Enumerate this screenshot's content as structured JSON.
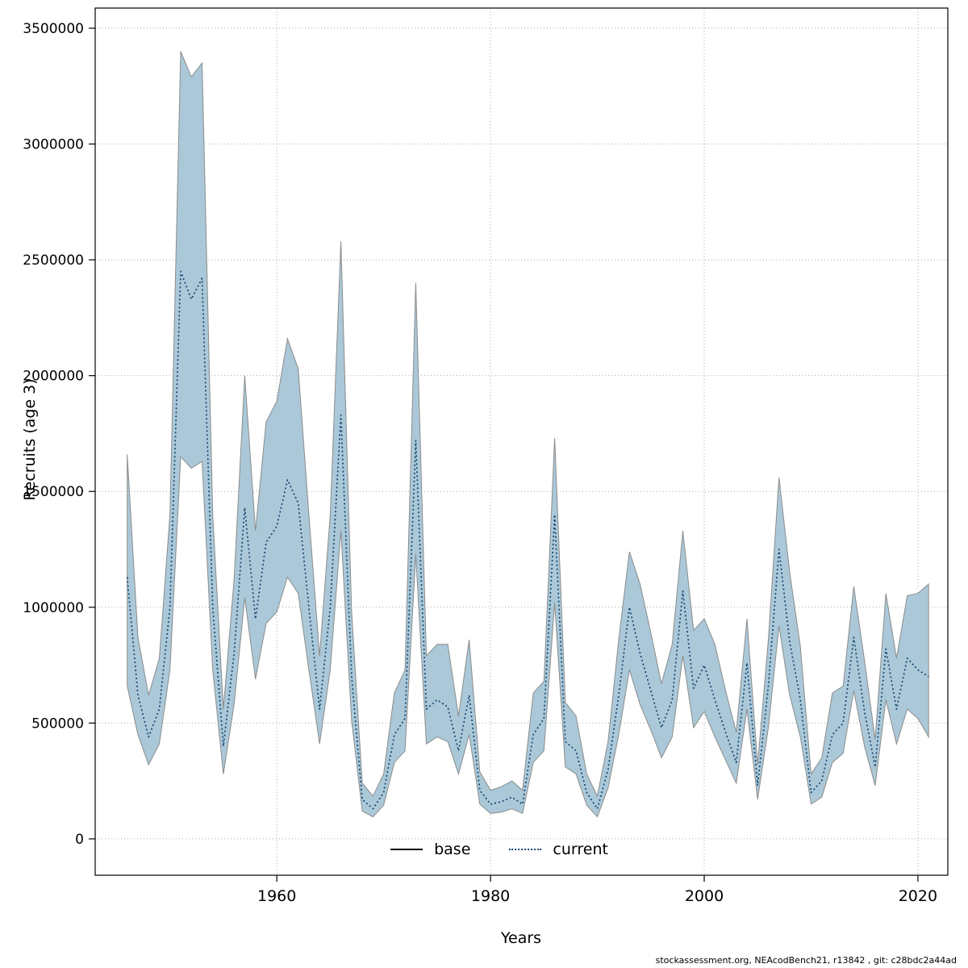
{
  "page": {
    "footer": "stockassessment.org, NEAcodBench21, r13842 , git: c28bdc2a44ad"
  },
  "chart_data": {
    "type": "line",
    "title": "",
    "xlabel": "Years",
    "ylabel": "Recruits (age 3)",
    "x_ticks": [
      1960,
      1980,
      2000,
      2020
    ],
    "y_ticks": [
      0,
      500000,
      1000000,
      1500000,
      2000000,
      2500000,
      3000000,
      3500000
    ],
    "xlim": [
      1943.0,
      2022.8
    ],
    "ylim": [
      -157000,
      3587000
    ],
    "grid": "dotted",
    "grid_color": "#aaaaaa",
    "band_color": "#aac8d8",
    "band_edge_color": "#8c8c8c",
    "line_color": "#17456e",
    "legend": [
      {
        "label": "base",
        "style": "solid",
        "color": "#000000"
      },
      {
        "label": "current",
        "style": "dotted",
        "color": "#17456e"
      }
    ],
    "years": [
      1946,
      1947,
      1948,
      1949,
      1950,
      1951,
      1952,
      1953,
      1954,
      1955,
      1956,
      1957,
      1958,
      1959,
      1960,
      1961,
      1962,
      1963,
      1964,
      1965,
      1966,
      1967,
      1968,
      1969,
      1970,
      1971,
      1972,
      1973,
      1974,
      1975,
      1976,
      1977,
      1978,
      1979,
      1980,
      1981,
      1982,
      1983,
      1984,
      1985,
      1986,
      1987,
      1988,
      1989,
      1990,
      1991,
      1992,
      1993,
      1994,
      1995,
      1996,
      1997,
      1998,
      1999,
      2000,
      2001,
      2002,
      2003,
      2004,
      2005,
      2006,
      2007,
      2008,
      2009,
      2010,
      2011,
      2012,
      2013,
      2014,
      2015,
      2016,
      2017,
      2018,
      2019,
      2020,
      2021
    ],
    "series": [
      {
        "name": "current",
        "style": "dotted",
        "values": [
          1130000,
          620000,
          440000,
          560000,
          1000000,
          2450000,
          2330000,
          2420000,
          1000000,
          400000,
          800000,
          1430000,
          950000,
          1280000,
          1350000,
          1550000,
          1450000,
          1000000,
          560000,
          1000000,
          1830000,
          700000,
          170000,
          130000,
          200000,
          450000,
          520000,
          1720000,
          560000,
          600000,
          570000,
          380000,
          620000,
          210000,
          150000,
          160000,
          180000,
          150000,
          450000,
          520000,
          1400000,
          420000,
          380000,
          200000,
          130000,
          300000,
          620000,
          1000000,
          800000,
          640000,
          480000,
          600000,
          1070000,
          650000,
          750000,
          600000,
          460000,
          330000,
          760000,
          230000,
          660000,
          1250000,
          850000,
          600000,
          200000,
          250000,
          450000,
          500000,
          870000,
          550000,
          310000,
          820000,
          560000,
          780000,
          730000,
          700000
        ]
      }
    ],
    "band": {
      "name": "confidence-band",
      "lo": [
        660000,
        450000,
        320000,
        410000,
        730000,
        1650000,
        1600000,
        1630000,
        730000,
        280000,
        580000,
        1040000,
        690000,
        930000,
        980000,
        1130000,
        1060000,
        730000,
        410000,
        730000,
        1330000,
        510000,
        120000,
        95000,
        145000,
        330000,
        380000,
        1230000,
        410000,
        440000,
        420000,
        280000,
        450000,
        150000,
        110000,
        115000,
        130000,
        110000,
        330000,
        380000,
        1020000,
        310000,
        280000,
        145000,
        95000,
        220000,
        450000,
        730000,
        580000,
        470000,
        350000,
        440000,
        790000,
        480000,
        550000,
        440000,
        340000,
        240000,
        560000,
        170000,
        480000,
        920000,
        620000,
        440000,
        150000,
        180000,
        330000,
        370000,
        640000,
        400000,
        230000,
        600000,
        410000,
        560000,
        520000,
        440000
      ],
      "hi": [
        1660000,
        870000,
        620000,
        780000,
        1400000,
        3400000,
        3290000,
        3350000,
        1400000,
        560000,
        1120000,
        2000000,
        1330000,
        1800000,
        1890000,
        2160000,
        2030000,
        1400000,
        790000,
        1400000,
        2580000,
        980000,
        240000,
        185000,
        280000,
        630000,
        730000,
        2400000,
        790000,
        840000,
        840000,
        530000,
        860000,
        290000,
        210000,
        225000,
        250000,
        210000,
        630000,
        680000,
        1730000,
        590000,
        530000,
        280000,
        185000,
        420000,
        860000,
        1240000,
        1100000,
        890000,
        670000,
        840000,
        1330000,
        900000,
        950000,
        840000,
        640000,
        460000,
        950000,
        320000,
        860000,
        1560000,
        1150000,
        830000,
        280000,
        350000,
        630000,
        660000,
        1090000,
        770000,
        430000,
        1060000,
        780000,
        1050000,
        1060000,
        1100000
      ]
    }
  }
}
